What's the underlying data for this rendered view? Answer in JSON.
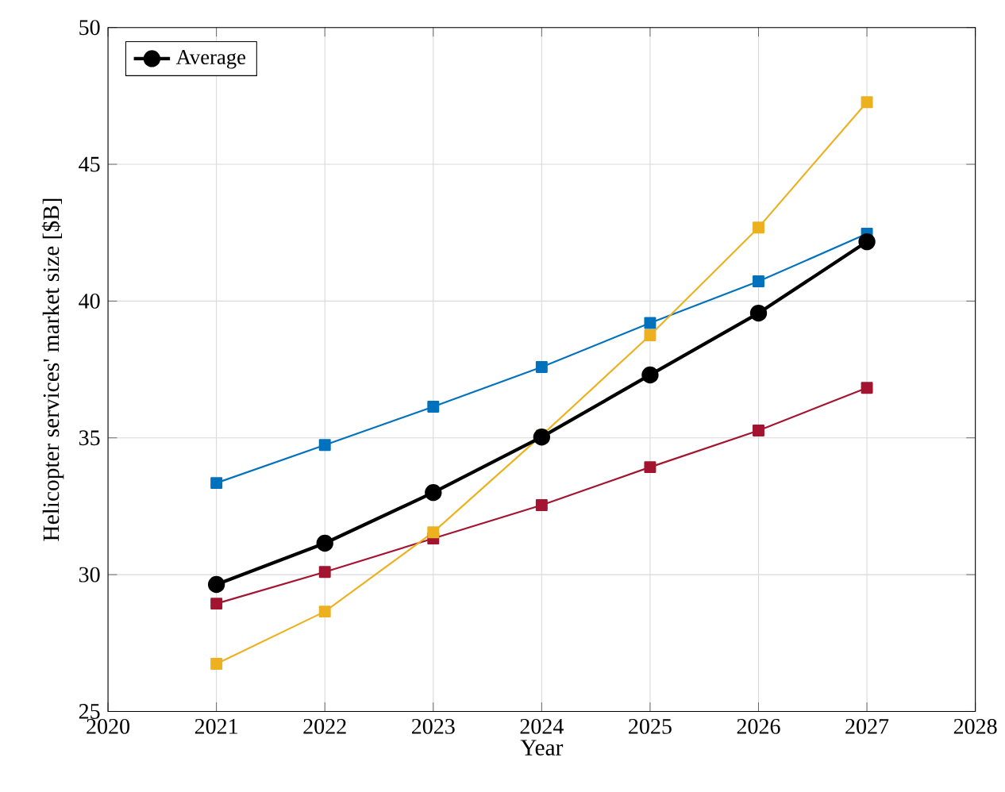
{
  "chart_data": {
    "type": "line",
    "xlabel": "Year",
    "ylabel": "Helicopter services' market size [$B]",
    "x": [
      2021,
      2022,
      2023,
      2024,
      2025,
      2026,
      2027
    ],
    "series": [
      {
        "color": "#0072bd",
        "marker": "square",
        "values": [
          33.35,
          34.74,
          36.14,
          37.59,
          39.2,
          40.72,
          42.46
        ]
      },
      {
        "color": "#a2142f",
        "marker": "square",
        "values": [
          28.94,
          30.1,
          31.32,
          32.54,
          33.93,
          35.27,
          36.83
        ]
      },
      {
        "color": "#edb120",
        "marker": "square",
        "values": [
          26.74,
          28.65,
          31.55,
          35.09,
          38.75,
          42.69,
          47.27
        ]
      },
      {
        "name": "Average",
        "color": "#000000",
        "marker": "circle",
        "values": [
          29.64,
          31.15,
          33.0,
          35.03,
          37.3,
          39.56,
          42.17
        ]
      }
    ],
    "xlim": [
      2020,
      2028
    ],
    "ylim": [
      25,
      50
    ],
    "xticks": [
      2020,
      2021,
      2022,
      2023,
      2024,
      2025,
      2026,
      2027,
      2028
    ],
    "yticks": [
      25,
      30,
      35,
      40,
      45,
      50
    ],
    "grid": true,
    "legend": "top left",
    "line_style": "solid"
  }
}
